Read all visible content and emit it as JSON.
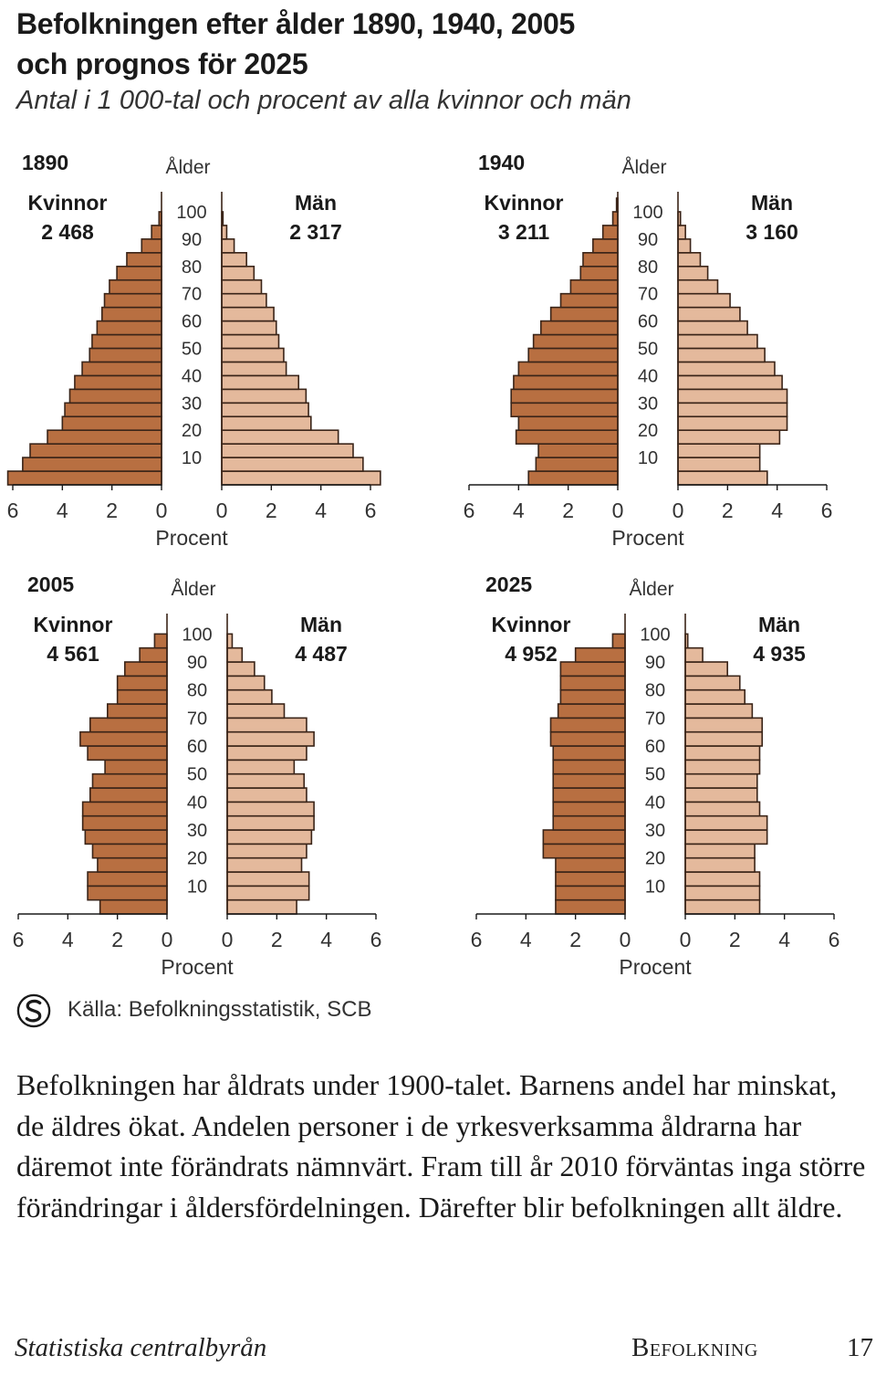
{
  "header": {
    "title_line1": "Befolkningen efter ålder 1890, 1940, 2005",
    "title_line2": "och prognos för 2025",
    "subtitle": "Antal i 1 000-tal och procent av alla kvinnor och män"
  },
  "colors": {
    "women": "#b86f41",
    "men": "#e4b99c",
    "outline": "#3a2418"
  },
  "chart_data": [
    {
      "type": "bar",
      "orientation": "population-pyramid",
      "year": "1890",
      "age_label": "Ålder",
      "xlabel": "Procent",
      "left_label": "Kvinnor",
      "left_total": "2 468",
      "right_label": "Män",
      "right_total": "2 317",
      "age_ticks": [
        "100",
        "90",
        "80",
        "70",
        "60",
        "50",
        "40",
        "30",
        "20",
        "10"
      ],
      "x_ticks_left": [
        "6",
        "4",
        "2",
        "0"
      ],
      "x_ticks_right": [
        "0",
        "2",
        "4",
        "6"
      ],
      "xlim": [
        0,
        6
      ],
      "age_groups_bottom_to_top": [
        "0-4",
        "5-9",
        "10-14",
        "15-19",
        "20-24",
        "25-29",
        "30-34",
        "35-39",
        "40-44",
        "45-49",
        "50-54",
        "55-59",
        "60-64",
        "65-69",
        "70-74",
        "75-79",
        "80-84",
        "85-89",
        "90-94",
        "95-99",
        "100+"
      ],
      "women": [
        6.2,
        5.6,
        5.3,
        4.6,
        4.0,
        3.9,
        3.7,
        3.5,
        3.2,
        2.9,
        2.8,
        2.6,
        2.4,
        2.3,
        2.1,
        1.8,
        1.4,
        0.8,
        0.4,
        0.1,
        0.0
      ],
      "men": [
        6.4,
        5.7,
        5.3,
        4.7,
        3.6,
        3.5,
        3.4,
        3.1,
        2.6,
        2.5,
        2.3,
        2.2,
        2.1,
        1.8,
        1.6,
        1.3,
        1.0,
        0.5,
        0.2,
        0.05,
        0.0
      ]
    },
    {
      "type": "bar",
      "orientation": "population-pyramid",
      "year": "1940",
      "age_label": "Ålder",
      "xlabel": "Procent",
      "left_label": "Kvinnor",
      "left_total": "3 211",
      "right_label": "Män",
      "right_total": "3 160",
      "age_ticks": [
        "100",
        "90",
        "80",
        "70",
        "60",
        "50",
        "40",
        "30",
        "20",
        "10"
      ],
      "x_ticks_left": [
        "6",
        "4",
        "2",
        "0"
      ],
      "x_ticks_right": [
        "0",
        "2",
        "4",
        "6"
      ],
      "xlim": [
        0,
        6
      ],
      "age_groups_bottom_to_top": [
        "0-4",
        "5-9",
        "10-14",
        "15-19",
        "20-24",
        "25-29",
        "30-34",
        "35-39",
        "40-44",
        "45-49",
        "50-54",
        "55-59",
        "60-64",
        "65-69",
        "70-74",
        "75-79",
        "80-84",
        "85-89",
        "90-94",
        "95-99",
        "100+"
      ],
      "women": [
        3.6,
        3.3,
        3.2,
        4.1,
        4.0,
        4.3,
        4.3,
        4.2,
        4.0,
        3.6,
        3.4,
        3.1,
        2.7,
        2.3,
        1.9,
        1.5,
        1.4,
        1.0,
        0.6,
        0.2,
        0.05
      ],
      "men": [
        3.6,
        3.3,
        3.3,
        4.1,
        4.4,
        4.4,
        4.4,
        4.2,
        3.9,
        3.5,
        3.2,
        2.8,
        2.5,
        2.1,
        1.6,
        1.2,
        0.9,
        0.5,
        0.3,
        0.1,
        0.0
      ]
    },
    {
      "type": "bar",
      "orientation": "population-pyramid",
      "year": "2005",
      "age_label": "Ålder",
      "xlabel": "Procent",
      "left_label": "Kvinnor",
      "left_total": "4 561",
      "right_label": "Män",
      "right_total": "4 487",
      "age_ticks": [
        "100",
        "90",
        "80",
        "70",
        "60",
        "50",
        "40",
        "30",
        "20",
        "10"
      ],
      "x_ticks_left": [
        "6",
        "4",
        "2",
        "0"
      ],
      "x_ticks_right": [
        "0",
        "2",
        "4",
        "6"
      ],
      "xlim": [
        0,
        6
      ],
      "age_groups_bottom_to_top": [
        "0-4",
        "5-9",
        "10-14",
        "15-19",
        "20-24",
        "25-29",
        "30-34",
        "35-39",
        "40-44",
        "45-49",
        "50-54",
        "55-59",
        "60-64",
        "65-69",
        "70-74",
        "75-79",
        "80-84",
        "85-89",
        "90-94",
        "95-99",
        "100+"
      ],
      "women": [
        2.7,
        3.2,
        3.2,
        2.8,
        3.0,
        3.3,
        3.4,
        3.4,
        3.1,
        3.0,
        2.5,
        3.2,
        3.5,
        3.1,
        2.4,
        2.0,
        2.0,
        1.7,
        1.1,
        0.5,
        0.0
      ],
      "men": [
        2.8,
        3.3,
        3.3,
        3.0,
        3.2,
        3.4,
        3.5,
        3.5,
        3.2,
        3.1,
        2.7,
        3.2,
        3.5,
        3.2,
        2.3,
        1.8,
        1.5,
        1.1,
        0.6,
        0.2,
        0.0
      ]
    },
    {
      "type": "bar",
      "orientation": "population-pyramid",
      "year": "2025",
      "age_label": "Ålder",
      "xlabel": "Procent",
      "left_label": "Kvinnor",
      "left_total": "4 952",
      "right_label": "Män",
      "right_total": "4 935",
      "age_ticks": [
        "100",
        "90",
        "80",
        "70",
        "60",
        "50",
        "40",
        "30",
        "20",
        "10"
      ],
      "x_ticks_left": [
        "6",
        "4",
        "2",
        "0"
      ],
      "x_ticks_right": [
        "0",
        "2",
        "4",
        "6"
      ],
      "xlim": [
        0,
        6
      ],
      "age_groups_bottom_to_top": [
        "0-4",
        "5-9",
        "10-14",
        "15-19",
        "20-24",
        "25-29",
        "30-34",
        "35-39",
        "40-44",
        "45-49",
        "50-54",
        "55-59",
        "60-64",
        "65-69",
        "70-74",
        "75-79",
        "80-84",
        "85-89",
        "90-94",
        "95-99",
        "100+"
      ],
      "women": [
        2.8,
        2.8,
        2.8,
        2.8,
        3.3,
        3.3,
        2.9,
        2.9,
        2.9,
        2.9,
        2.9,
        2.9,
        3.0,
        3.0,
        2.7,
        2.6,
        2.6,
        2.6,
        2.0,
        0.5,
        0.0
      ],
      "men": [
        3.0,
        3.0,
        3.0,
        2.8,
        2.8,
        3.3,
        3.3,
        3.0,
        2.9,
        2.9,
        3.0,
        3.0,
        3.1,
        3.1,
        2.7,
        2.4,
        2.2,
        1.7,
        0.7,
        0.1,
        0.0
      ]
    }
  ],
  "source": {
    "text": "Källa: Befolkningsstatistik, SCB",
    "icon": "scb-logo-icon"
  },
  "body_text": "Befolkningen har åldrats under 1900-talet. Barnens andel har minskat, de äldres ökat. Andelen personer i de yrkesverksamma åldrarna har däremot inte förändrats nämnvärt. Fram till år 2010 förväntas inga större förändringar i åldersfördelningen. Därefter blir befolkningen allt äldre.",
  "footer": {
    "publisher": "Statistiska centralbyrån",
    "section": "Befolkning",
    "page": "17"
  }
}
